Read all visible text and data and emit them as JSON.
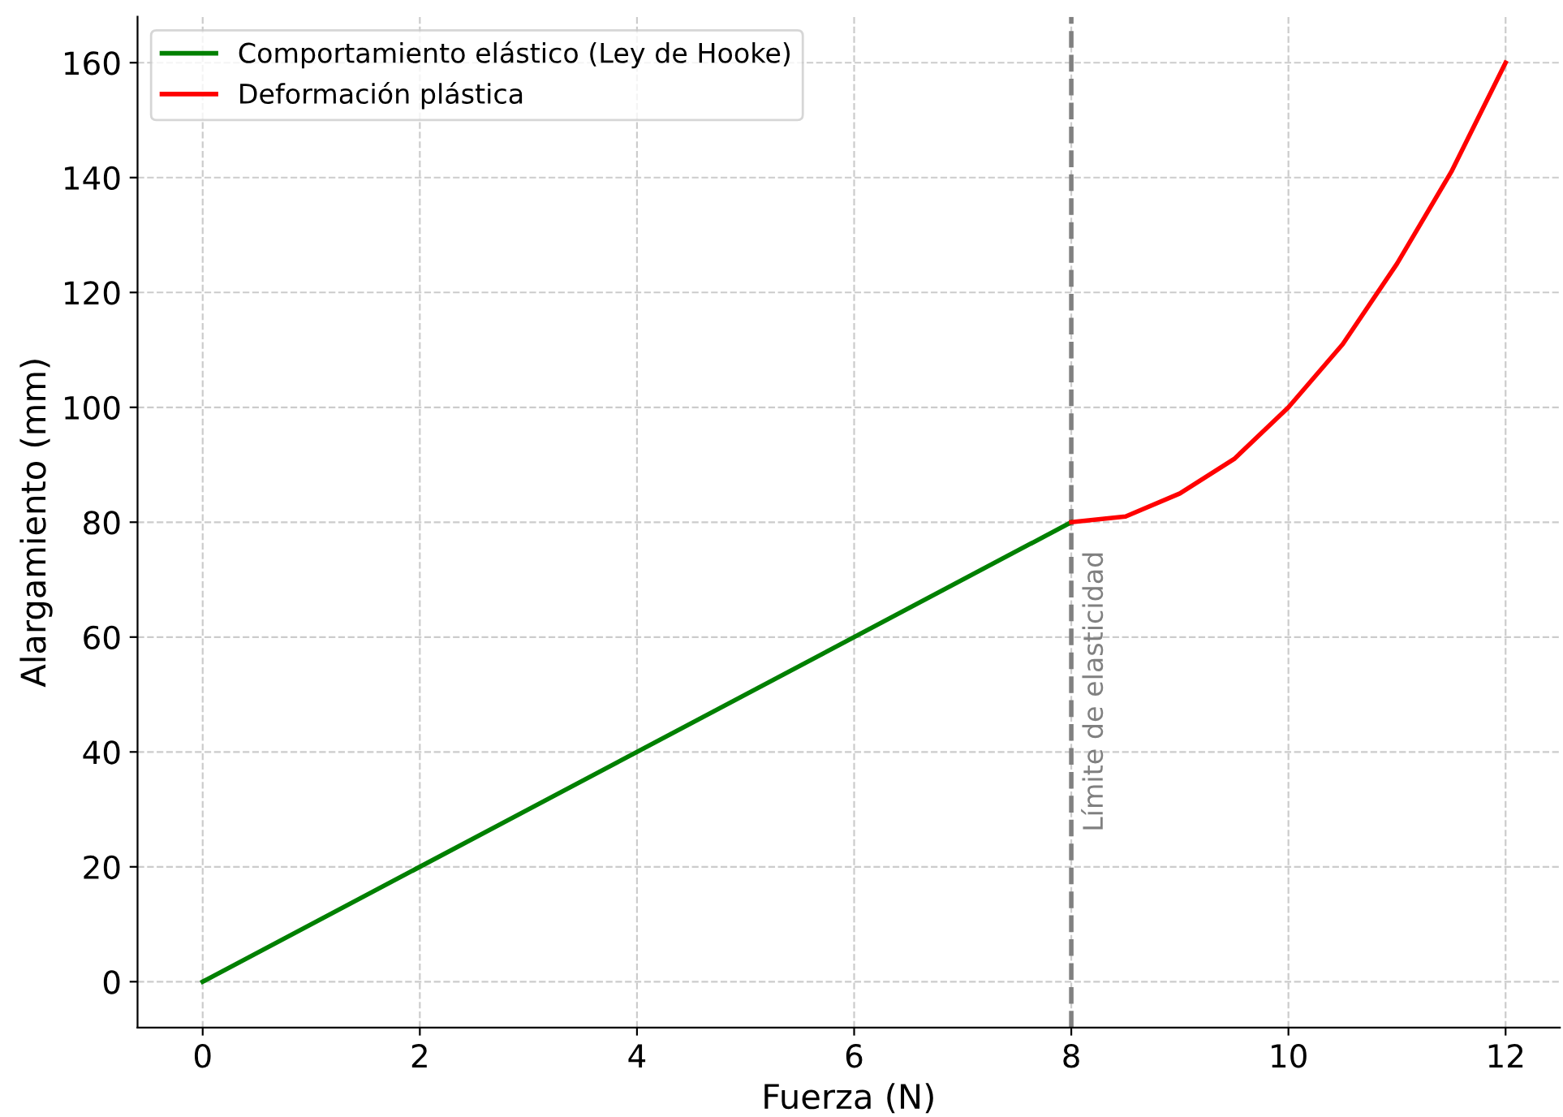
{
  "chart_data": {
    "type": "line",
    "xlabel": "Fuerza (N)",
    "ylabel": "Alargamiento (mm)",
    "series": [
      {
        "name": "Comportamiento elástico (Ley de Hooke)",
        "color": "#008000",
        "x": [
          0,
          8
        ],
        "values": [
          0,
          80
        ]
      },
      {
        "name": "Deformación plástica",
        "color": "#ff0000",
        "x": [
          8,
          8.5,
          9,
          9.5,
          10,
          10.5,
          11,
          11.5,
          12
        ],
        "values": [
          80,
          81,
          85,
          91,
          100,
          111,
          125,
          141,
          160
        ]
      }
    ],
    "xlim": [
      -0.6,
      12.5
    ],
    "ylim": [
      -8,
      168
    ],
    "xticks": [
      0,
      2,
      4,
      6,
      8,
      10,
      12
    ],
    "yticks": [
      0,
      20,
      40,
      60,
      80,
      100,
      120,
      140,
      160
    ],
    "ref_lines": [
      {
        "axis": "x",
        "value": 8,
        "label": "Límite de elasticidad",
        "color": "#808080",
        "line_style": "dashed"
      }
    ],
    "grid": true,
    "legend": "top left",
    "line_style": "solid",
    "marker": "none"
  }
}
